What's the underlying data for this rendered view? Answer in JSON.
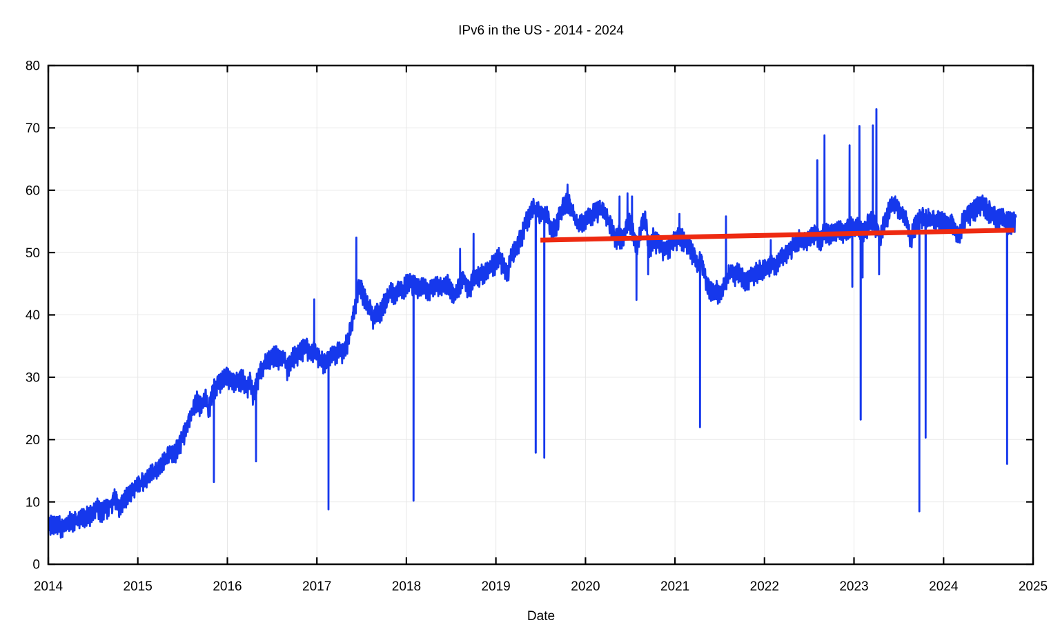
{
  "title": "IPv6 in the US - 2014 - 2024",
  "chart_data": {
    "type": "line",
    "title": "IPv6 in the US - 2014 - 2024",
    "xlabel": "Date",
    "ylabel": "",
    "xlim": [
      2014,
      2025
    ],
    "ylim": [
      0,
      80
    ],
    "x_ticks": [
      2014,
      2015,
      2016,
      2017,
      2018,
      2019,
      2020,
      2021,
      2022,
      2023,
      2024,
      2025
    ],
    "x_tick_labels": [
      "2014",
      "2015",
      "2016",
      "2017",
      "2018",
      "2019",
      "2020",
      "2021",
      "2022",
      "2023",
      "2024",
      "2025"
    ],
    "y_ticks": [
      0,
      10,
      20,
      30,
      40,
      50,
      60,
      70,
      80
    ],
    "y_tick_labels": [
      "0",
      "10",
      "20",
      "30",
      "40",
      "50",
      "60",
      "70",
      "80"
    ],
    "grid": true,
    "grid_color": "#e7e7e7",
    "axis_color": "#000000",
    "background_color": "#ffffff",
    "legend": "none",
    "series": [
      {
        "name": "ipv6-adoption-percent",
        "type": "noisy-line",
        "color": "#1638ec",
        "line_width": 2.8,
        "t_start": 2014.0,
        "t_end": 2024.81,
        "noise": {
          "weekly": 1.05,
          "biweekly": 0.5,
          "random": 0.7
        },
        "anchors": [
          [
            2014.0,
            6.6
          ],
          [
            2014.08,
            6.4
          ],
          [
            2014.17,
            6.2
          ],
          [
            2014.25,
            6.9
          ],
          [
            2014.33,
            7.2
          ],
          [
            2014.42,
            7.7
          ],
          [
            2014.5,
            8.3
          ],
          [
            2014.55,
            9.2
          ],
          [
            2014.6,
            8.6
          ],
          [
            2014.67,
            9.4
          ],
          [
            2014.75,
            10.6
          ],
          [
            2014.79,
            9.3
          ],
          [
            2014.83,
            10.2
          ],
          [
            2014.92,
            11.6
          ],
          [
            2015.0,
            13.0
          ],
          [
            2015.08,
            13.6
          ],
          [
            2015.17,
            14.8
          ],
          [
            2015.25,
            15.8
          ],
          [
            2015.33,
            17.5
          ],
          [
            2015.42,
            18.3
          ],
          [
            2015.5,
            20.5
          ],
          [
            2015.58,
            23.5
          ],
          [
            2015.63,
            25.5
          ],
          [
            2015.67,
            26.5
          ],
          [
            2015.71,
            25.0
          ],
          [
            2015.75,
            27.5
          ],
          [
            2015.79,
            24.5
          ],
          [
            2015.83,
            28.0
          ],
          [
            2015.88,
            29.0
          ],
          [
            2015.92,
            29.5
          ],
          [
            2016.0,
            30.3
          ],
          [
            2016.08,
            29.5
          ],
          [
            2016.17,
            30.0
          ],
          [
            2016.21,
            28.5
          ],
          [
            2016.25,
            29.5
          ],
          [
            2016.29,
            27.0
          ],
          [
            2016.33,
            29.5
          ],
          [
            2016.38,
            31.5
          ],
          [
            2016.42,
            32.5
          ],
          [
            2016.5,
            33.2
          ],
          [
            2016.54,
            34.0
          ],
          [
            2016.58,
            33.0
          ],
          [
            2016.63,
            33.5
          ],
          [
            2016.67,
            31.5
          ],
          [
            2016.71,
            33.0
          ],
          [
            2016.75,
            33.5
          ],
          [
            2016.83,
            34.5
          ],
          [
            2016.88,
            35.0
          ],
          [
            2016.92,
            34.0
          ],
          [
            2016.96,
            34.5
          ],
          [
            2017.0,
            33.8
          ],
          [
            2017.04,
            33.0
          ],
          [
            2017.08,
            32.5
          ],
          [
            2017.17,
            33.5
          ],
          [
            2017.25,
            34.5
          ],
          [
            2017.29,
            34.0
          ],
          [
            2017.33,
            35.5
          ],
          [
            2017.38,
            38.0
          ],
          [
            2017.42,
            41.0
          ],
          [
            2017.46,
            44.5
          ],
          [
            2017.5,
            44.0
          ],
          [
            2017.54,
            42.5
          ],
          [
            2017.58,
            41.5
          ],
          [
            2017.63,
            39.5
          ],
          [
            2017.67,
            41.0
          ],
          [
            2017.71,
            40.5
          ],
          [
            2017.75,
            42.0
          ],
          [
            2017.79,
            43.0
          ],
          [
            2017.83,
            44.0
          ],
          [
            2017.88,
            43.5
          ],
          [
            2017.92,
            44.5
          ],
          [
            2017.96,
            44.0
          ],
          [
            2018.0,
            45.0
          ],
          [
            2018.04,
            45.5
          ],
          [
            2018.13,
            44.5
          ],
          [
            2018.17,
            45.0
          ],
          [
            2018.25,
            44.0
          ],
          [
            2018.33,
            45.0
          ],
          [
            2018.42,
            44.5
          ],
          [
            2018.46,
            45.5
          ],
          [
            2018.5,
            44.0
          ],
          [
            2018.54,
            43.0
          ],
          [
            2018.58,
            44.5
          ],
          [
            2018.63,
            46.0
          ],
          [
            2018.67,
            45.0
          ],
          [
            2018.71,
            44.0
          ],
          [
            2018.75,
            46.5
          ],
          [
            2018.79,
            46.0
          ],
          [
            2018.83,
            46.5
          ],
          [
            2018.88,
            47.0
          ],
          [
            2018.92,
            47.5
          ],
          [
            2018.96,
            48.0
          ],
          [
            2019.0,
            48.5
          ],
          [
            2019.04,
            49.5
          ],
          [
            2019.08,
            48.0
          ],
          [
            2019.13,
            46.5
          ],
          [
            2019.17,
            49.5
          ],
          [
            2019.21,
            50.5
          ],
          [
            2019.25,
            51.5
          ],
          [
            2019.29,
            53.0
          ],
          [
            2019.33,
            55.0
          ],
          [
            2019.38,
            56.5
          ],
          [
            2019.42,
            57.5
          ],
          [
            2019.46,
            57.0
          ],
          [
            2019.5,
            56.0
          ],
          [
            2019.54,
            56.5
          ],
          [
            2019.58,
            56.0
          ],
          [
            2019.6,
            54.0
          ],
          [
            2019.63,
            53.5
          ],
          [
            2019.67,
            54.5
          ],
          [
            2019.71,
            56.0
          ],
          [
            2019.75,
            57.5
          ],
          [
            2019.79,
            58.5
          ],
          [
            2019.83,
            58.0
          ],
          [
            2019.88,
            55.5
          ],
          [
            2019.92,
            54.5
          ],
          [
            2019.96,
            55.0
          ],
          [
            2020.0,
            55.5
          ],
          [
            2020.04,
            56.0
          ],
          [
            2020.08,
            56.5
          ],
          [
            2020.13,
            57.0
          ],
          [
            2020.17,
            57.0
          ],
          [
            2020.21,
            56.5
          ],
          [
            2020.25,
            55.5
          ],
          [
            2020.29,
            54.0
          ],
          [
            2020.33,
            52.5
          ],
          [
            2020.38,
            53.0
          ],
          [
            2020.42,
            52.0
          ],
          [
            2020.46,
            54.5
          ],
          [
            2020.5,
            55.0
          ],
          [
            2020.54,
            53.0
          ],
          [
            2020.58,
            50.5
          ],
          [
            2020.63,
            55.0
          ],
          [
            2020.67,
            55.5
          ],
          [
            2020.71,
            50.5
          ],
          [
            2020.75,
            52.5
          ],
          [
            2020.79,
            52.0
          ],
          [
            2020.83,
            51.5
          ],
          [
            2020.88,
            50.5
          ],
          [
            2020.92,
            51.0
          ],
          [
            2020.96,
            51.5
          ],
          [
            2021.0,
            52.0
          ],
          [
            2021.04,
            53.0
          ],
          [
            2021.08,
            52.5
          ],
          [
            2021.13,
            51.5
          ],
          [
            2021.17,
            51.0
          ],
          [
            2021.21,
            49.5
          ],
          [
            2021.25,
            48.0
          ],
          [
            2021.29,
            49.5
          ],
          [
            2021.33,
            46.5
          ],
          [
            2021.38,
            44.5
          ],
          [
            2021.42,
            43.5
          ],
          [
            2021.46,
            44.0
          ],
          [
            2021.5,
            43.5
          ],
          [
            2021.54,
            44.5
          ],
          [
            2021.58,
            46.0
          ],
          [
            2021.63,
            47.0
          ],
          [
            2021.67,
            46.5
          ],
          [
            2021.71,
            47.0
          ],
          [
            2021.75,
            46.0
          ],
          [
            2021.79,
            45.5
          ],
          [
            2021.83,
            46.0
          ],
          [
            2021.88,
            46.5
          ],
          [
            2021.92,
            47.0
          ],
          [
            2022.0,
            47.5
          ],
          [
            2022.04,
            48.0
          ],
          [
            2022.08,
            48.5
          ],
          [
            2022.13,
            48.0
          ],
          [
            2022.17,
            49.0
          ],
          [
            2022.21,
            49.5
          ],
          [
            2022.25,
            50.0
          ],
          [
            2022.29,
            50.5
          ],
          [
            2022.33,
            51.5
          ],
          [
            2022.38,
            52.0
          ],
          [
            2022.42,
            52.5
          ],
          [
            2022.46,
            52.0
          ],
          [
            2022.5,
            52.5
          ],
          [
            2022.54,
            53.0
          ],
          [
            2022.58,
            53.0
          ],
          [
            2022.63,
            52.0
          ],
          [
            2022.67,
            53.5
          ],
          [
            2022.71,
            53.0
          ],
          [
            2022.75,
            53.0
          ],
          [
            2022.79,
            53.5
          ],
          [
            2022.83,
            54.0
          ],
          [
            2022.88,
            53.5
          ],
          [
            2022.92,
            54.0
          ],
          [
            2022.96,
            54.5
          ],
          [
            2023.0,
            54.0
          ],
          [
            2023.04,
            54.5
          ],
          [
            2023.08,
            53.5
          ],
          [
            2023.13,
            54.0
          ],
          [
            2023.17,
            55.0
          ],
          [
            2023.21,
            55.5
          ],
          [
            2023.25,
            54.0
          ],
          [
            2023.29,
            52.5
          ],
          [
            2023.33,
            54.5
          ],
          [
            2023.38,
            56.5
          ],
          [
            2023.42,
            57.5
          ],
          [
            2023.46,
            58.0
          ],
          [
            2023.5,
            57.0
          ],
          [
            2023.54,
            56.0
          ],
          [
            2023.58,
            55.5
          ],
          [
            2023.63,
            52.5
          ],
          [
            2023.67,
            54.0
          ],
          [
            2023.71,
            55.5
          ],
          [
            2023.75,
            56.0
          ],
          [
            2023.79,
            55.5
          ],
          [
            2023.83,
            56.0
          ],
          [
            2023.88,
            55.5
          ],
          [
            2023.92,
            55.0
          ],
          [
            2023.96,
            55.5
          ],
          [
            2024.0,
            55.0
          ],
          [
            2024.04,
            54.5
          ],
          [
            2024.08,
            55.0
          ],
          [
            2024.13,
            54.0
          ],
          [
            2024.17,
            52.5
          ],
          [
            2024.21,
            55.0
          ],
          [
            2024.25,
            56.0
          ],
          [
            2024.29,
            56.5
          ],
          [
            2024.33,
            57.0
          ],
          [
            2024.38,
            57.5
          ],
          [
            2024.42,
            58.0
          ],
          [
            2024.46,
            57.5
          ],
          [
            2024.5,
            57.0
          ],
          [
            2024.54,
            56.5
          ],
          [
            2024.58,
            56.0
          ],
          [
            2024.63,
            55.5
          ],
          [
            2024.67,
            55.5
          ],
          [
            2024.71,
            55.0
          ],
          [
            2024.75,
            55.0
          ],
          [
            2024.81,
            55.5
          ]
        ],
        "spikes": [
          [
            2015.85,
            13.2
          ],
          [
            2016.32,
            16.5
          ],
          [
            2016.97,
            42.5
          ],
          [
            2017.13,
            8.8
          ],
          [
            2017.44,
            52.4
          ],
          [
            2018.08,
            10.2
          ],
          [
            2018.6,
            50.6
          ],
          [
            2018.75,
            53.0
          ],
          [
            2019.445,
            17.9
          ],
          [
            2019.54,
            17.1
          ],
          [
            2019.8,
            60.9
          ],
          [
            2020.38,
            59.0
          ],
          [
            2020.47,
            59.5
          ],
          [
            2020.52,
            59.0
          ],
          [
            2020.57,
            42.4
          ],
          [
            2020.7,
            46.5
          ],
          [
            2021.05,
            56.2
          ],
          [
            2021.28,
            22.0
          ],
          [
            2021.57,
            55.8
          ],
          [
            2022.07,
            52.0
          ],
          [
            2022.59,
            64.8
          ],
          [
            2022.67,
            68.8
          ],
          [
            2022.95,
            67.2
          ],
          [
            2022.98,
            44.5
          ],
          [
            2023.06,
            70.3
          ],
          [
            2023.075,
            23.2
          ],
          [
            2023.095,
            46.0
          ],
          [
            2023.21,
            70.4
          ],
          [
            2023.25,
            73.0
          ],
          [
            2023.28,
            46.5
          ],
          [
            2023.73,
            8.5
          ],
          [
            2023.8,
            20.3
          ],
          [
            2024.18,
            51.8
          ],
          [
            2024.71,
            16.1
          ]
        ]
      },
      {
        "name": "trend-line",
        "type": "straight-line",
        "color": "#ee2a11",
        "line_width": 7,
        "points": [
          [
            2019.497,
            52.0
          ],
          [
            2024.79,
            53.6
          ]
        ]
      }
    ]
  }
}
